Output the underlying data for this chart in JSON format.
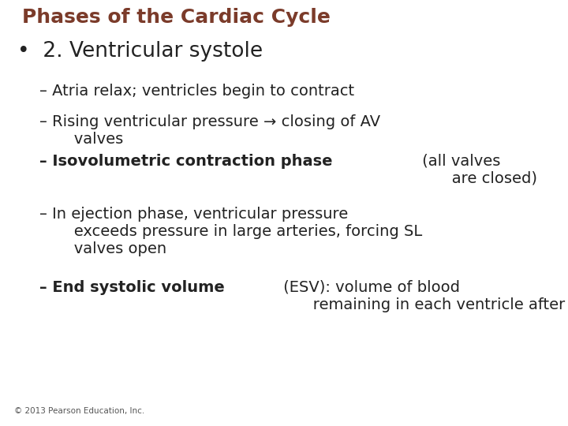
{
  "title": "Phases of the Cardiac Cycle",
  "title_color": "#7B3B2A",
  "title_fontsize": 18,
  "background_color": "#FFFFFF",
  "bullet_text": "2. Ventricular systole",
  "bullet_fontsize": 19,
  "bullet_color": "#222222",
  "sub_fontsize": 14,
  "sub_items": [
    {
      "bold_part": "",
      "normal_part": "Atria relax; ventricles begin to contract"
    },
    {
      "bold_part": "",
      "normal_part": "Rising ventricular pressure → closing of AV\n       valves"
    },
    {
      "bold_part": "Isovolumetric contraction phase",
      "normal_part": " (all valves\n       are closed)"
    },
    {
      "bold_part": "",
      "normal_part": "In ejection phase, ventricular pressure\n       exceeds pressure in large arteries, forcing SL\n       valves open"
    },
    {
      "bold_part": "End systolic volume",
      "normal_part": " (ESV): volume of blood\n       remaining in each ventricle after systole"
    }
  ],
  "footer": "© 2013 Pearson Education, Inc.",
  "footer_fontsize": 7.5,
  "footer_color": "#555555"
}
